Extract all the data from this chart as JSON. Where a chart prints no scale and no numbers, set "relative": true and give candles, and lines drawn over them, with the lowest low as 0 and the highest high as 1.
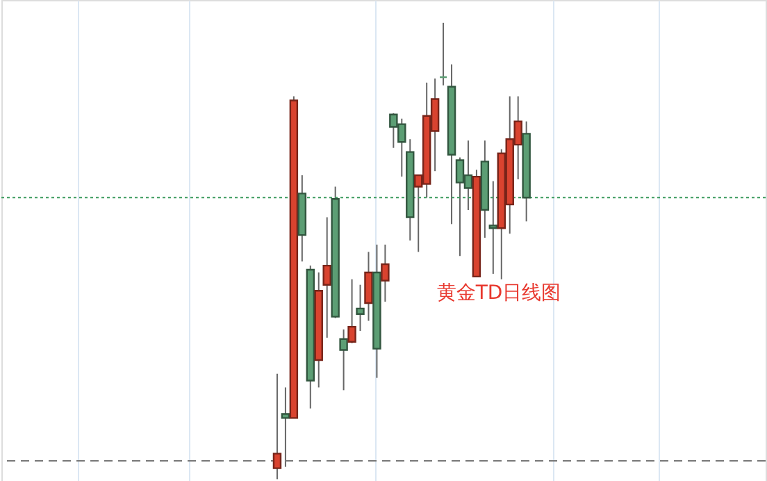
{
  "chart_data": {
    "type": "candlestick",
    "relative": true,
    "tick_labels": false,
    "categories": [
      null,
      null,
      null,
      null,
      null,
      null,
      null,
      null,
      null,
      null,
      null,
      null,
      null,
      null,
      null,
      null,
      null,
      null,
      null,
      null,
      null,
      null,
      null,
      null,
      null,
      null,
      null,
      null,
      null,
      null,
      null
    ],
    "ohlc": [
      [
        0.024,
        0.231,
        0,
        0.056
      ],
      [
        0.143,
        0.201,
        0.027,
        0.134
      ],
      [
        0.134,
        0.839,
        0.134,
        0.83
      ],
      [
        0.626,
        0.666,
        0.477,
        0.535
      ],
      [
        0.459,
        0.468,
        0.155,
        0.216
      ],
      [
        0.261,
        0.453,
        0.201,
        0.413
      ],
      [
        0.426,
        0.574,
        0.31,
        0.468
      ],
      [
        0.614,
        0.641,
        0.353,
        0.356
      ],
      [
        0.307,
        0.328,
        0.195,
        0.283
      ],
      [
        0.301,
        0.438,
        0.298,
        0.334
      ],
      [
        0.374,
        0.426,
        0.325,
        0.362
      ],
      [
        0.386,
        0.498,
        0.347,
        0.453
      ],
      [
        0.453,
        0.514,
        0.222,
        0.286
      ],
      [
        0.435,
        0.514,
        0.389,
        0.471
      ],
      [
        0.799,
        0.802,
        0.726,
        0.772
      ],
      [
        0.778,
        0.79,
        0.663,
        0.739
      ],
      [
        0.717,
        0.745,
        0.523,
        0.574
      ],
      [
        0.641,
        0.666,
        0.498,
        0.666
      ],
      [
        0.647,
        0.869,
        0.617,
        0.796
      ],
      [
        0.763,
        0.878,
        0.675,
        0.833
      ],
      [
        0.881,
        1,
        0.863,
        0.881
      ],
      [
        0.86,
        0.909,
        0.559,
        0.711
      ],
      [
        0.699,
        0.705,
        0.489,
        0.65
      ],
      [
        0.666,
        0.742,
        0.59,
        0.638
      ],
      [
        0.444,
        0.678,
        0.444,
        0.663
      ],
      [
        0.696,
        0.742,
        0.529,
        0.59
      ],
      [
        0.556,
        0.653,
        0.45,
        0.55
      ],
      [
        0.55,
        0.723,
        0.438,
        0.714
      ],
      [
        0.602,
        0.839,
        0.538,
        0.745
      ],
      [
        0.733,
        0.839,
        0.657,
        0.784
      ],
      [
        0.757,
        0.784,
        0.565,
        0.617
      ]
    ],
    "colors": [
      "#d9432f",
      "#5c9e74",
      "#d9432f",
      "#5c9e74",
      "#5c9e74",
      "#d9432f",
      "#d9432f",
      "#5c9e74",
      "#5c9e74",
      "#d9432f",
      "#5c9e74",
      "#d9432f",
      "#5c9e74",
      "#d9432f",
      "#5c9e74",
      "#5c9e74",
      "#5c9e74",
      "#d9432f",
      "#d9432f",
      "#d9432f",
      "#5c9e74",
      "#5c9e74",
      "#5c9e74",
      "#5c9e74",
      "#d9432f",
      "#5c9e74",
      "#5c9e74",
      "#d9432f",
      "#d9432f",
      "#d9432f",
      "#5c9e74"
    ],
    "ref_lines": [
      {
        "axis": "y",
        "value": 0.617,
        "color": "#3a9a5c",
        "line_style": "dotted"
      },
      {
        "axis": "y",
        "value": 0.04,
        "color": "#777777",
        "line_style": "dashed"
      }
    ],
    "annotations": [
      "黄金TD日线图"
    ]
  }
}
